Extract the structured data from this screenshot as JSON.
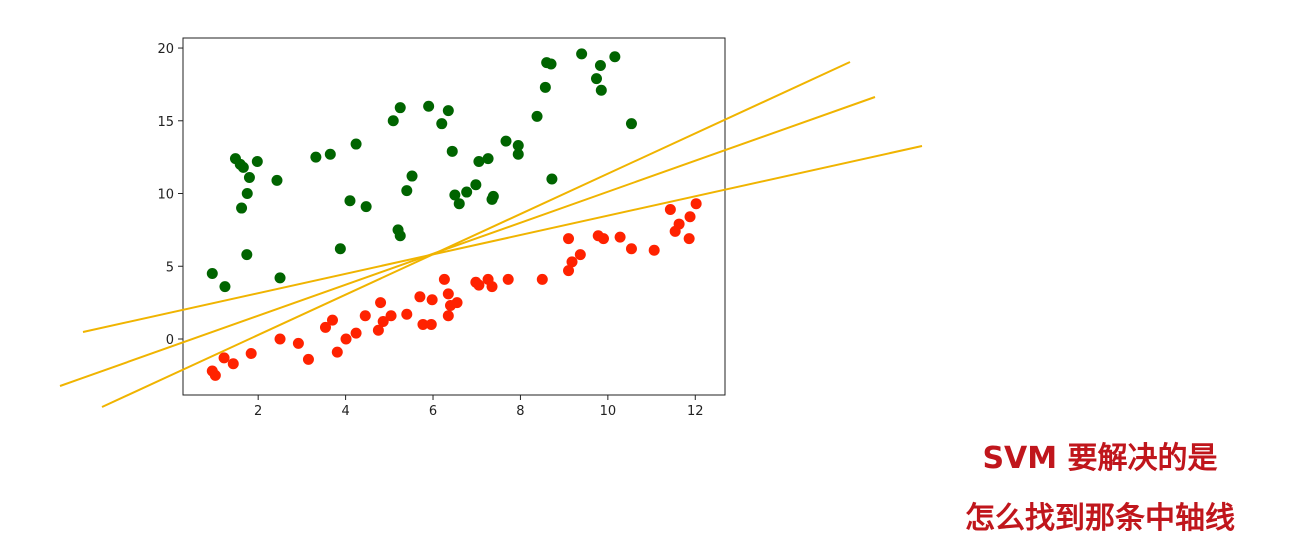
{
  "chart_data": {
    "type": "scatter",
    "xlim": [
      0.28,
      12.68
    ],
    "ylim": [
      -3.85,
      20.69
    ],
    "xticks": [
      2,
      4,
      6,
      8,
      10,
      12
    ],
    "yticks": [
      0,
      5,
      10,
      15,
      20
    ],
    "grid": false,
    "annotations": [
      "SVM 要解决的是",
      "怎么找到那条中轴线"
    ],
    "series": [
      {
        "color": "#006400",
        "x": [
          0.95,
          1.24,
          1.48,
          1.59,
          1.66,
          1.8,
          1.98,
          1.75,
          1.62,
          1.74,
          2.43,
          2.5,
          3.32,
          3.65,
          3.88,
          4.1,
          4.24,
          4.47,
          5.09,
          5.25,
          5.2,
          5.25,
          5.4,
          5.52,
          5.9,
          6.2,
          6.35,
          6.44,
          6.5,
          6.6,
          6.77,
          6.98,
          7.05,
          7.26,
          7.35,
          7.38,
          7.67,
          7.95,
          7.95,
          8.38,
          8.57,
          8.6,
          8.7,
          8.72,
          9.4,
          9.74,
          9.83,
          9.85,
          10.16,
          10.54
        ],
        "values": [
          4.5,
          3.6,
          12.4,
          12.0,
          11.8,
          11.1,
          12.2,
          10.0,
          9.0,
          5.8,
          10.9,
          4.2,
          12.5,
          12.7,
          6.2,
          9.5,
          13.4,
          9.1,
          15.0,
          15.9,
          7.5,
          7.1,
          10.2,
          11.2,
          16.0,
          14.8,
          15.7,
          12.9,
          9.9,
          9.3,
          10.1,
          10.6,
          12.2,
          12.4,
          9.6,
          9.8,
          13.6,
          13.3,
          12.7,
          15.3,
          17.3,
          19.0,
          18.9,
          11.0,
          19.6,
          17.9,
          18.8,
          17.1,
          19.4,
          14.8
        ]
      },
      {
        "color": "#ff2200",
        "x": [
          0.95,
          1.02,
          1.22,
          1.43,
          1.84,
          2.5,
          2.92,
          3.15,
          3.54,
          3.7,
          3.81,
          4.01,
          4.24,
          4.45,
          4.75,
          4.8,
          4.86,
          5.04,
          5.4,
          5.7,
          5.77,
          5.96,
          5.98,
          6.26,
          6.35,
          6.35,
          6.4,
          6.55,
          6.98,
          7.05,
          7.26,
          7.35,
          7.72,
          8.5,
          9.1,
          9.1,
          9.18,
          9.37,
          9.78,
          9.9,
          10.28,
          10.54,
          11.06,
          11.43,
          11.54,
          11.63,
          11.86,
          11.88,
          12.02
        ],
        "values": [
          -2.2,
          -2.5,
          -1.3,
          -1.7,
          -1.0,
          0,
          -0.3,
          -1.4,
          0.8,
          1.3,
          -0.9,
          0,
          0.4,
          1.6,
          0.6,
          2.5,
          1.2,
          1.6,
          1.7,
          2.9,
          1.0,
          1.0,
          2.7,
          4.1,
          3.1,
          1.6,
          2.3,
          2.5,
          3.9,
          3.7,
          4.1,
          3.6,
          4.1,
          4.1,
          6.9,
          4.7,
          5.3,
          5.8,
          7.1,
          6.9,
          7.0,
          6.2,
          6.1,
          8.9,
          7.4,
          7.9,
          6.9,
          8.4,
          9.3
        ]
      }
    ]
  }
}
